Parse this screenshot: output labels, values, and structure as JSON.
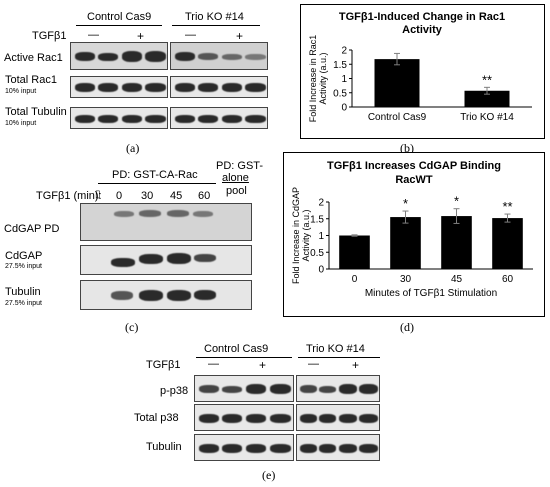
{
  "panel_a": {
    "letter": "(a)",
    "header_left": "Control Cas9",
    "header_right": "Trio KO #14",
    "treatment_label": "TGFβ1",
    "minus": "—",
    "plus": "+",
    "row1": "Active Rac1",
    "row2": "Total Rac1",
    "row2_sub": "10% input",
    "row3": "Total Tubulin",
    "row3_sub": "10% input"
  },
  "panel_c": {
    "letter": "(c)",
    "header_pd": "PD: GST-CA-Rac",
    "header_alone_1": "PD: GST-",
    "header_alone_2": "alone",
    "header_alone_3": "pool",
    "treatment_label": "TGFβ1 (min):",
    "lane0": "▯",
    "times": [
      "0",
      "30",
      "45",
      "60"
    ],
    "row1": "CdGAP PD",
    "row2": "CdGAP",
    "row2_sub": "27.5% input",
    "row3": "Tubulin",
    "row3_sub": "27.5% input"
  },
  "panel_e": {
    "letter": "(e)",
    "header_left": "Control Cas9",
    "header_right": "Trio KO #14",
    "treatment_label": "TGFβ1",
    "minus": "—",
    "plus": "+",
    "row1": "p-p38",
    "row2": "Total p38",
    "row3": "Tubulin"
  },
  "chart_data": [
    {
      "type": "bar",
      "panel_letter": "(b)",
      "title": "TGFβ1-Induced Change in Rac1 Activity",
      "ylabel": "Fold Increase in Rac1 Activity (a.u.)",
      "xlabel": "",
      "categories": [
        "Control Cas9",
        "Trio KO #14"
      ],
      "values": [
        1.68,
        0.57
      ],
      "errors": [
        0.2,
        0.12
      ],
      "significance": [
        "",
        "**"
      ],
      "ylim": [
        0,
        2
      ],
      "yticks": [
        "0",
        "0.5",
        "1",
        "1.5",
        "2"
      ],
      "grid": false,
      "bar_color": "#000000"
    },
    {
      "type": "bar",
      "panel_letter": "(d)",
      "title": "TGFβ1 Increases CdGAP Binding RacWT",
      "ylabel": "Fold Increase in CdGAP Activity (a.u.)",
      "xlabel": "Minutes of TGFβ1 Stimulation",
      "categories": [
        "0",
        "30",
        "45",
        "60"
      ],
      "values": [
        1.0,
        1.55,
        1.58,
        1.52
      ],
      "errors": [
        0.02,
        0.18,
        0.22,
        0.12
      ],
      "significance": [
        "",
        "*",
        "*",
        "**"
      ],
      "ylim": [
        0,
        2
      ],
      "yticks": [
        "0",
        "0.5",
        "1",
        "1.5",
        "2"
      ],
      "grid": false,
      "bar_color": "#000000"
    }
  ]
}
